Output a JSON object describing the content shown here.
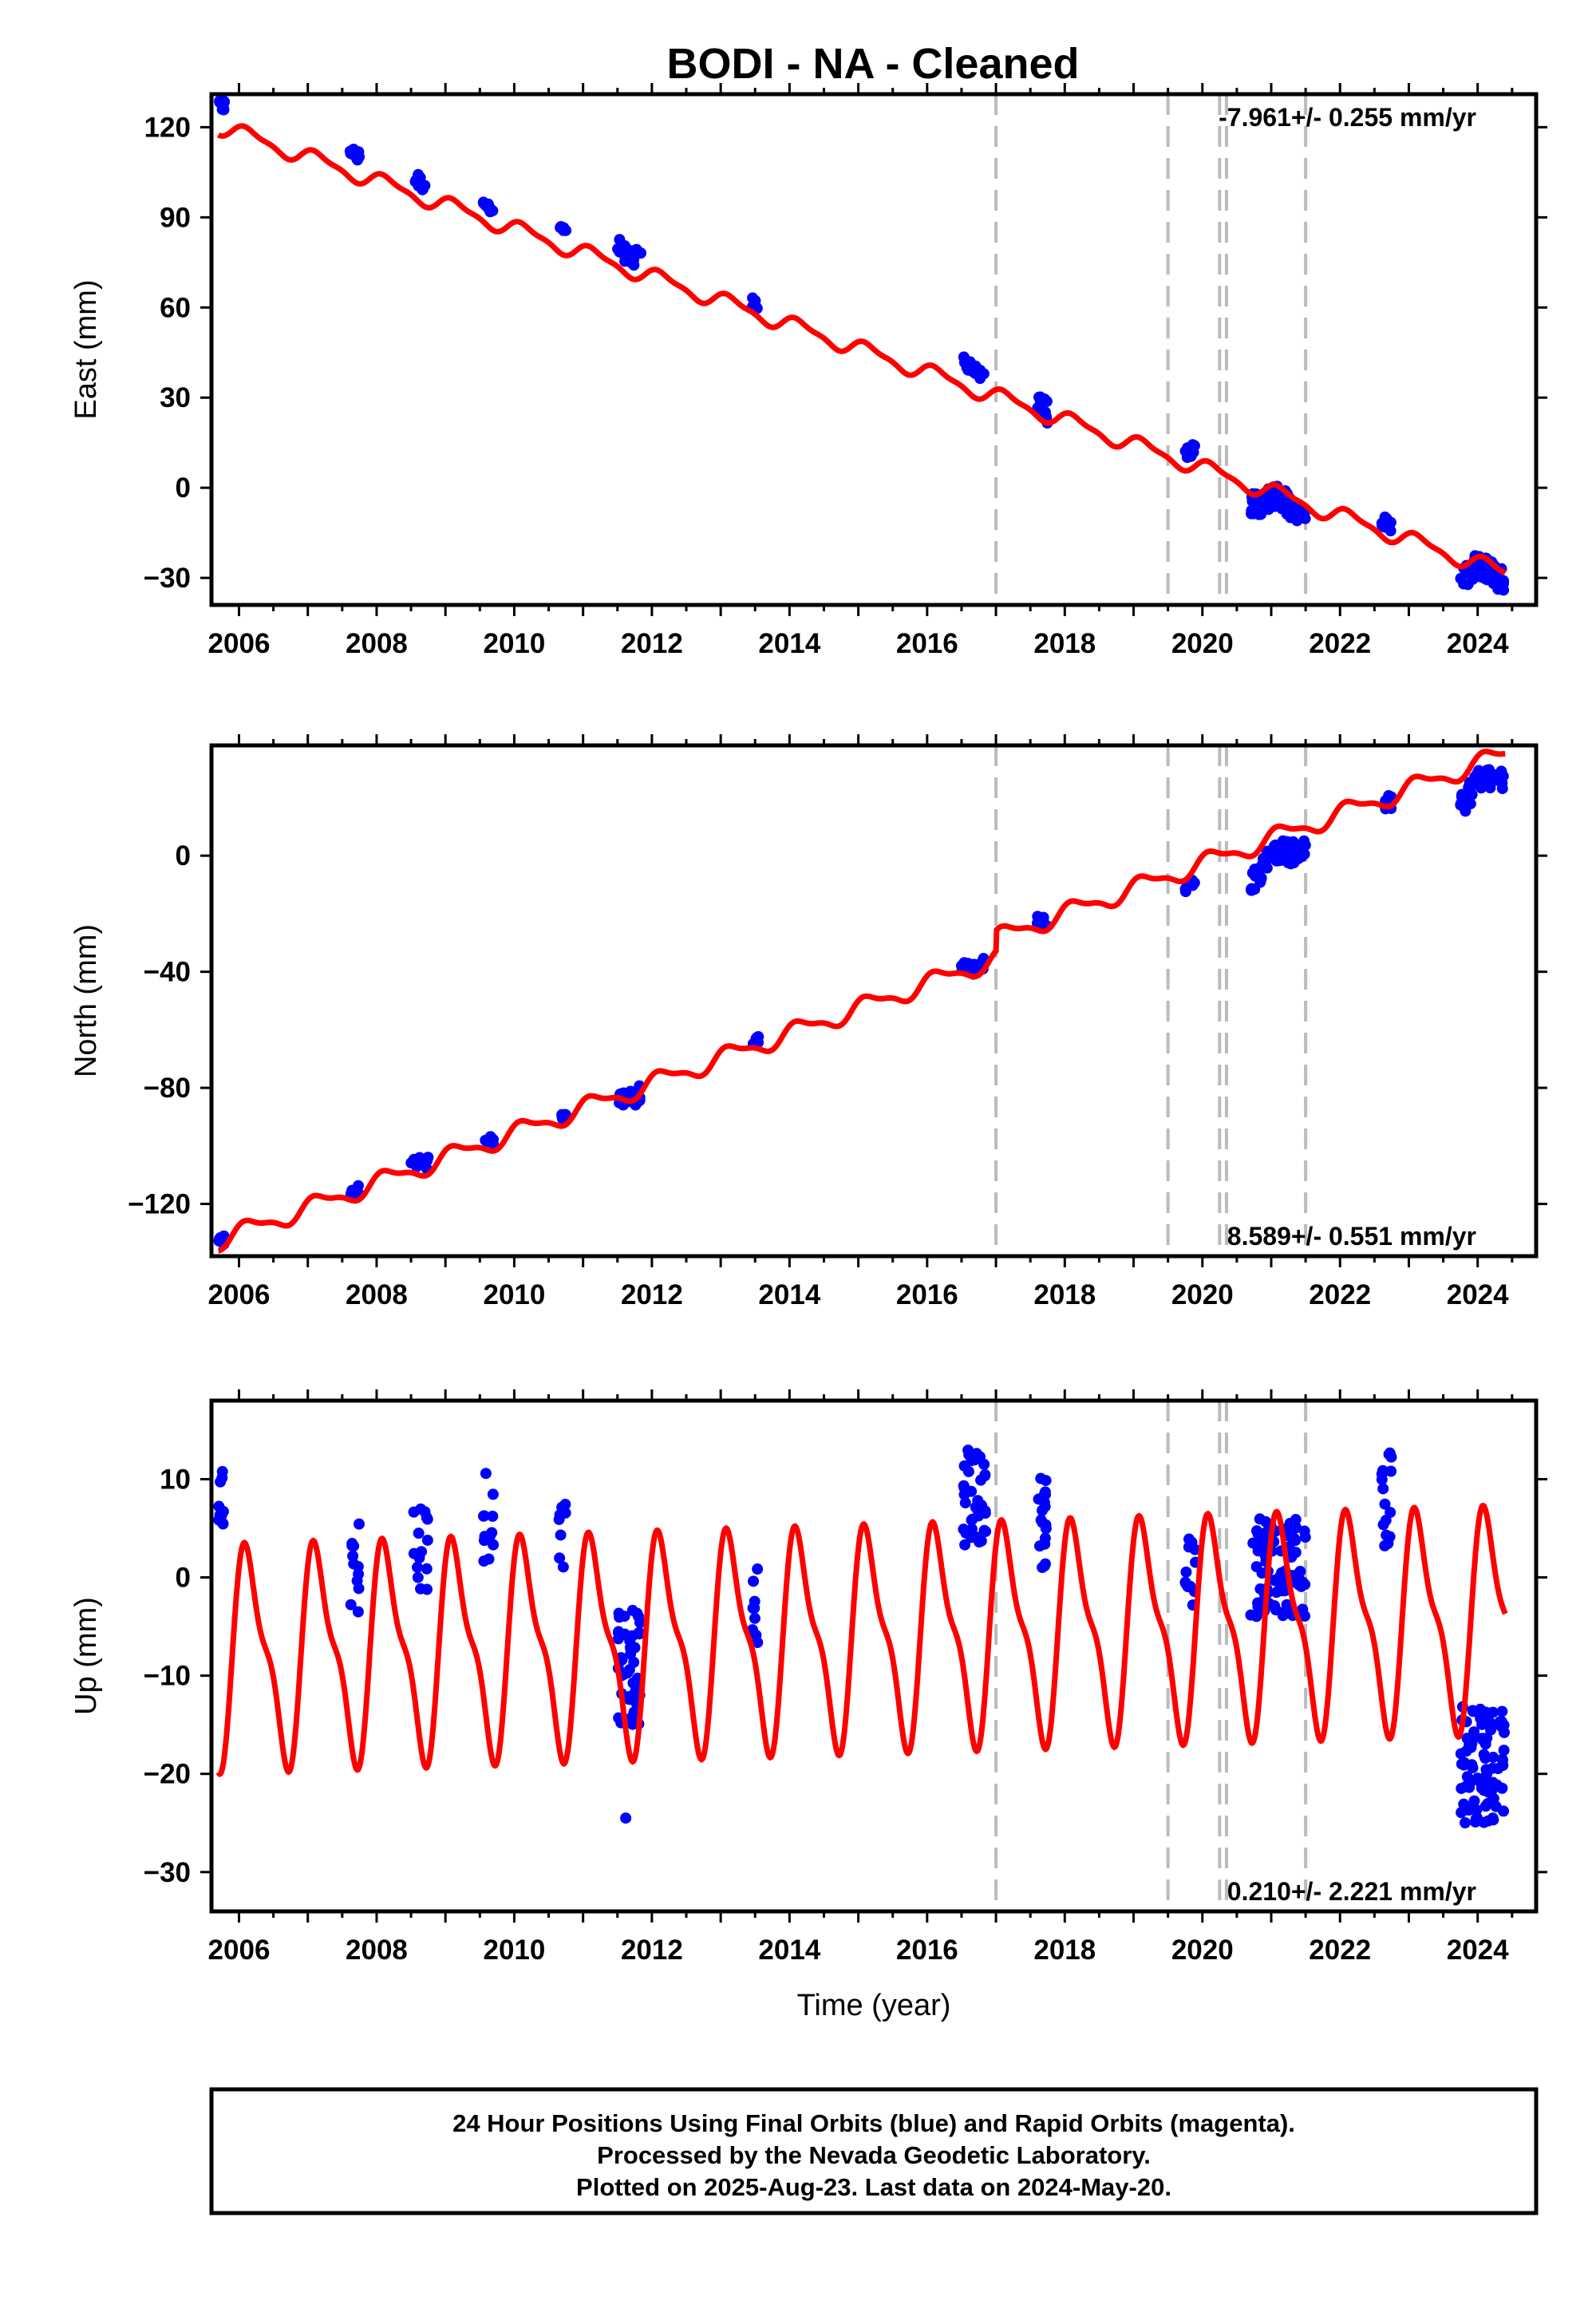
{
  "title": "BODI  - NA - Cleaned",
  "colors": {
    "final_orbits": "#0000ff",
    "model": "#ff0000",
    "events": "#bbbbbb",
    "frame": "#000000"
  },
  "chart_data": [
    {
      "type": "scatter",
      "panel": "east",
      "ylabel": "East (mm)",
      "xlabel": "",
      "xlim": [
        2005.6,
        2024.85
      ],
      "ylim": [
        -39,
        131
      ],
      "xticks": [
        2006,
        2008,
        2010,
        2012,
        2014,
        2016,
        2018,
        2020,
        2022,
        2024
      ],
      "yticks": [
        -30,
        0,
        30,
        60,
        90,
        120
      ],
      "ytick_labels": [
        "−30",
        "0",
        "30",
        "60",
        "90",
        "120"
      ],
      "rate_label": "-7.961+/- 0.255 mm/yr",
      "rate_position": "top-right",
      "events": [
        2017.0,
        2019.5,
        2020.25,
        2020.35,
        2021.5
      ],
      "model": {
        "name": "",
        "trend_intercept_2006": 118,
        "trend_rate": -7.961,
        "annual_amplitude": 2.5,
        "offsets": [
          {
            "at": 2021.5,
            "value": 0
          }
        ]
      },
      "clusters": [
        {
          "x0": 2005.7,
          "x1": 2005.8,
          "y": 127,
          "spread": 2,
          "n": 10
        },
        {
          "x0": 2007.6,
          "x1": 2007.75,
          "y": 111,
          "spread": 2,
          "n": 12
        },
        {
          "x0": 2008.5,
          "x1": 2008.75,
          "y": 102,
          "spread": 2,
          "n": 14
        },
        {
          "x0": 2009.55,
          "x1": 2009.7,
          "y": 93,
          "spread": 1.5,
          "n": 8
        },
        {
          "x0": 2010.65,
          "x1": 2010.75,
          "y": 86,
          "spread": 1,
          "n": 6
        },
        {
          "x0": 2011.5,
          "x1": 2011.85,
          "y": 77,
          "spread": 3,
          "n": 24
        },
        {
          "x0": 2013.45,
          "x1": 2013.55,
          "y": 61,
          "spread": 2,
          "n": 8
        },
        {
          "x0": 2016.5,
          "x1": 2016.85,
          "y": 39,
          "spread": 2,
          "n": 20
        },
        {
          "x0": 2017.6,
          "x1": 2017.75,
          "y": 26,
          "spread": 4,
          "n": 14
        },
        {
          "x0": 2019.75,
          "x1": 2019.9,
          "y": 12,
          "spread": 2,
          "n": 10
        },
        {
          "x0": 2020.7,
          "x1": 2021.5,
          "y": -3,
          "spread": 4,
          "n": 70
        },
        {
          "x0": 2022.6,
          "x1": 2022.75,
          "y": -12,
          "spread": 2,
          "n": 10
        },
        {
          "x0": 2023.75,
          "x1": 2024.4,
          "y": -26,
          "spread": 4,
          "n": 60
        }
      ]
    },
    {
      "type": "scatter",
      "panel": "north",
      "ylabel": "North (mm)",
      "xlabel": "",
      "xlim": [
        2005.6,
        2024.85
      ],
      "ylim": [
        -138,
        38
      ],
      "xticks": [
        2006,
        2008,
        2010,
        2012,
        2014,
        2016,
        2018,
        2020,
        2022,
        2024
      ],
      "yticks": [
        -120,
        -80,
        -40,
        0
      ],
      "ytick_labels": [
        "−120",
        "−80",
        "−40",
        "0"
      ],
      "rate_label": "8.589+/- 0.551 mm/yr",
      "rate_position": "bottom-right",
      "events": [
        2017.0,
        2019.5,
        2020.25,
        2020.35,
        2021.5
      ],
      "model": {
        "name": "",
        "trend_intercept_2006": -130,
        "trend_rate": 8.589,
        "annual_amplitude": 3,
        "offsets": [
          {
            "at": 2017.0,
            "value": 7
          }
        ]
      },
      "clusters": [
        {
          "x0": 2005.7,
          "x1": 2005.8,
          "y": -133,
          "spread": 2,
          "n": 10
        },
        {
          "x0": 2007.6,
          "x1": 2007.75,
          "y": -116,
          "spread": 2,
          "n": 10
        },
        {
          "x0": 2008.5,
          "x1": 2008.75,
          "y": -106,
          "spread": 2,
          "n": 12
        },
        {
          "x0": 2009.55,
          "x1": 2009.7,
          "y": -98,
          "spread": 1.5,
          "n": 8
        },
        {
          "x0": 2010.65,
          "x1": 2010.75,
          "y": -90,
          "spread": 1,
          "n": 6
        },
        {
          "x0": 2011.5,
          "x1": 2011.85,
          "y": -84,
          "spread": 3,
          "n": 24
        },
        {
          "x0": 2013.45,
          "x1": 2013.55,
          "y": -63,
          "spread": 2,
          "n": 8
        },
        {
          "x0": 2016.5,
          "x1": 2016.85,
          "y": -39,
          "spread": 2,
          "n": 20
        },
        {
          "x0": 2017.6,
          "x1": 2017.75,
          "y": -23,
          "spread": 2,
          "n": 12
        },
        {
          "x0": 2019.75,
          "x1": 2019.9,
          "y": -10,
          "spread": 2,
          "n": 10
        },
        {
          "x0": 2020.7,
          "x1": 2021.5,
          "y": 2,
          "spread": 4,
          "n": 70
        },
        {
          "x0": 2022.6,
          "x1": 2022.75,
          "y": 18,
          "spread": 3,
          "n": 10
        },
        {
          "x0": 2023.75,
          "x1": 2024.4,
          "y": 27,
          "spread": 4,
          "n": 60
        }
      ]
    },
    {
      "type": "scatter",
      "panel": "up",
      "ylabel": "Up (mm)",
      "xlabel": "Time (year)",
      "xlim": [
        2005.6,
        2024.85
      ],
      "ylim": [
        -34,
        18
      ],
      "xticks": [
        2006,
        2008,
        2010,
        2012,
        2014,
        2016,
        2018,
        2020,
        2022,
        2024
      ],
      "yticks": [
        -30,
        -20,
        -10,
        0,
        10
      ],
      "ytick_labels": [
        "−30",
        "−20",
        "−10",
        "0",
        "10"
      ],
      "rate_label": "0.210+/- 2.221 mm/yr",
      "rate_position": "bottom-right",
      "events": [
        2017.0,
        2019.5,
        2020.25,
        2020.35,
        2021.5
      ],
      "model": {
        "name": "",
        "trend_intercept_2006": -8,
        "trend_rate": 0.21,
        "annual_amplitude": 10,
        "offsets": []
      },
      "clusters": [
        {
          "x0": 2005.7,
          "x1": 2005.8,
          "y": 8,
          "spread": 3,
          "n": 10
        },
        {
          "x0": 2007.6,
          "x1": 2007.75,
          "y": 1,
          "spread": 5,
          "n": 12
        },
        {
          "x0": 2008.5,
          "x1": 2008.75,
          "y": 3,
          "spread": 5,
          "n": 16
        },
        {
          "x0": 2009.55,
          "x1": 2009.7,
          "y": 6,
          "spread": 5,
          "n": 12
        },
        {
          "x0": 2010.65,
          "x1": 2010.75,
          "y": 5,
          "spread": 4,
          "n": 8
        },
        {
          "x0": 2011.5,
          "x1": 2011.85,
          "y": -9,
          "spread": 6,
          "n": 50
        },
        {
          "x0": 2013.45,
          "x1": 2013.55,
          "y": -3,
          "spread": 4,
          "n": 10
        },
        {
          "x0": 2016.5,
          "x1": 2016.85,
          "y": 8,
          "spread": 5,
          "n": 40
        },
        {
          "x0": 2017.6,
          "x1": 2017.75,
          "y": 6,
          "spread": 5,
          "n": 20
        },
        {
          "x0": 2019.75,
          "x1": 2019.9,
          "y": 1,
          "spread": 4,
          "n": 12
        },
        {
          "x0": 2020.7,
          "x1": 2021.5,
          "y": 1,
          "spread": 5,
          "n": 90
        },
        {
          "x0": 2022.6,
          "x1": 2022.75,
          "y": 8,
          "spread": 5,
          "n": 16
        },
        {
          "x0": 2023.75,
          "x1": 2024.4,
          "y": -19,
          "spread": 6,
          "n": 90
        }
      ],
      "outliers": [
        {
          "x": 2011.62,
          "y": -24.5
        }
      ]
    }
  ],
  "footer": {
    "line1": "24 Hour Positions Using Final Orbits (blue) and Rapid Orbits (magenta).",
    "line2": "Processed by the Nevada Geodetic Laboratory.",
    "line3": "Plotted on 2025-Aug-23. Last data on 2024-May-20."
  }
}
